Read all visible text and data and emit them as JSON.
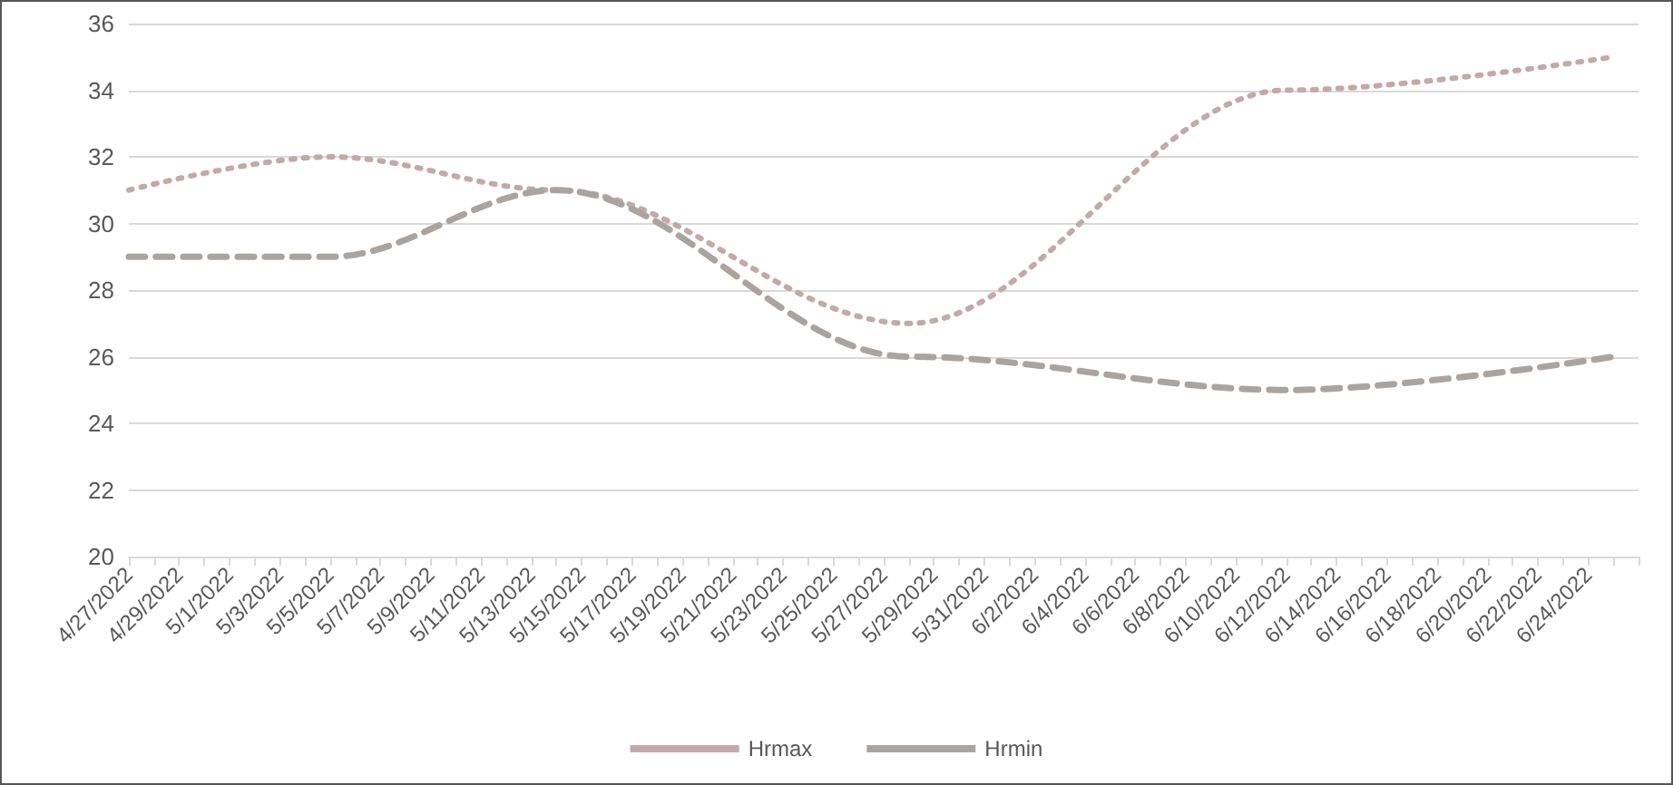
{
  "chart_data": {
    "type": "line",
    "x": [
      "2022-04-27",
      "2022-05-05",
      "2022-05-14",
      "2022-05-28",
      "2022-06-12",
      "2022-06-25"
    ],
    "series": [
      {
        "name": "Hrmax",
        "color": "#c4a9a9",
        "line_style": "dotted",
        "values": [
          31,
          32,
          31,
          27,
          34,
          35
        ]
      },
      {
        "name": "Hrmin",
        "color": "#aaa4a1",
        "line_style": "dashed",
        "values": [
          29,
          29,
          31,
          26,
          25,
          26
        ]
      }
    ],
    "xlim": [
      "2022-04-27",
      "2022-06-26"
    ],
    "xticks": [
      {
        "value": "2022-04-27",
        "label": "4/27/2022"
      },
      {
        "value": "2022-04-28",
        "label": null
      },
      {
        "value": "2022-04-29",
        "label": "4/29/2022"
      },
      {
        "value": "2022-04-30",
        "label": null
      },
      {
        "value": "2022-05-01",
        "label": "5/1/2022"
      },
      {
        "value": "2022-05-02",
        "label": null
      },
      {
        "value": "2022-05-03",
        "label": "5/3/2022"
      },
      {
        "value": "2022-05-04",
        "label": null
      },
      {
        "value": "2022-05-05",
        "label": "5/5/2022"
      },
      {
        "value": "2022-05-06",
        "label": null
      },
      {
        "value": "2022-05-07",
        "label": "5/7/2022"
      },
      {
        "value": "2022-05-08",
        "label": null
      },
      {
        "value": "2022-05-09",
        "label": "5/9/2022"
      },
      {
        "value": "2022-05-10",
        "label": null
      },
      {
        "value": "2022-05-11",
        "label": "5/11/2022"
      },
      {
        "value": "2022-05-12",
        "label": null
      },
      {
        "value": "2022-05-13",
        "label": "5/13/2022"
      },
      {
        "value": "2022-05-14",
        "label": null
      },
      {
        "value": "2022-05-15",
        "label": "5/15/2022"
      },
      {
        "value": "2022-05-16",
        "label": null
      },
      {
        "value": "2022-05-17",
        "label": "5/17/2022"
      },
      {
        "value": "2022-05-18",
        "label": null
      },
      {
        "value": "2022-05-19",
        "label": "5/19/2022"
      },
      {
        "value": "2022-05-20",
        "label": null
      },
      {
        "value": "2022-05-21",
        "label": "5/21/2022"
      },
      {
        "value": "2022-05-22",
        "label": null
      },
      {
        "value": "2022-05-23",
        "label": "5/23/2022"
      },
      {
        "value": "2022-05-24",
        "label": null
      },
      {
        "value": "2022-05-25",
        "label": "5/25/2022"
      },
      {
        "value": "2022-05-26",
        "label": null
      },
      {
        "value": "2022-05-27",
        "label": "5/27/2022"
      },
      {
        "value": "2022-05-28",
        "label": null
      },
      {
        "value": "2022-05-29",
        "label": "5/29/2022"
      },
      {
        "value": "2022-05-30",
        "label": null
      },
      {
        "value": "2022-05-31",
        "label": "5/31/2022"
      },
      {
        "value": "2022-06-01",
        "label": null
      },
      {
        "value": "2022-06-02",
        "label": "6/2/2022"
      },
      {
        "value": "2022-06-03",
        "label": null
      },
      {
        "value": "2022-06-04",
        "label": "6/4/2022"
      },
      {
        "value": "2022-06-05",
        "label": null
      },
      {
        "value": "2022-06-06",
        "label": "6/6/2022"
      },
      {
        "value": "2022-06-07",
        "label": null
      },
      {
        "value": "2022-06-08",
        "label": "6/8/2022"
      },
      {
        "value": "2022-06-09",
        "label": null
      },
      {
        "value": "2022-06-10",
        "label": "6/10/2022"
      },
      {
        "value": "2022-06-11",
        "label": null
      },
      {
        "value": "2022-06-12",
        "label": "6/12/2022"
      },
      {
        "value": "2022-06-13",
        "label": null
      },
      {
        "value": "2022-06-14",
        "label": "6/14/2022"
      },
      {
        "value": "2022-06-15",
        "label": null
      },
      {
        "value": "2022-06-16",
        "label": "6/16/2022"
      },
      {
        "value": "2022-06-17",
        "label": null
      },
      {
        "value": "2022-06-18",
        "label": "6/18/2022"
      },
      {
        "value": "2022-06-19",
        "label": null
      },
      {
        "value": "2022-06-20",
        "label": "6/20/2022"
      },
      {
        "value": "2022-06-21",
        "label": null
      },
      {
        "value": "2022-06-22",
        "label": "6/22/2022"
      },
      {
        "value": "2022-06-23",
        "label": null
      },
      {
        "value": "2022-06-24",
        "label": "6/24/2022"
      },
      {
        "value": "2022-06-25",
        "label": null
      },
      {
        "value": "2022-06-26",
        "label": null
      }
    ],
    "ylim": [
      20,
      36
    ],
    "yticks": [
      20,
      22,
      24,
      26,
      28,
      30,
      32,
      34,
      36
    ],
    "grid": "y",
    "legend": "bottom",
    "marker": "none"
  }
}
